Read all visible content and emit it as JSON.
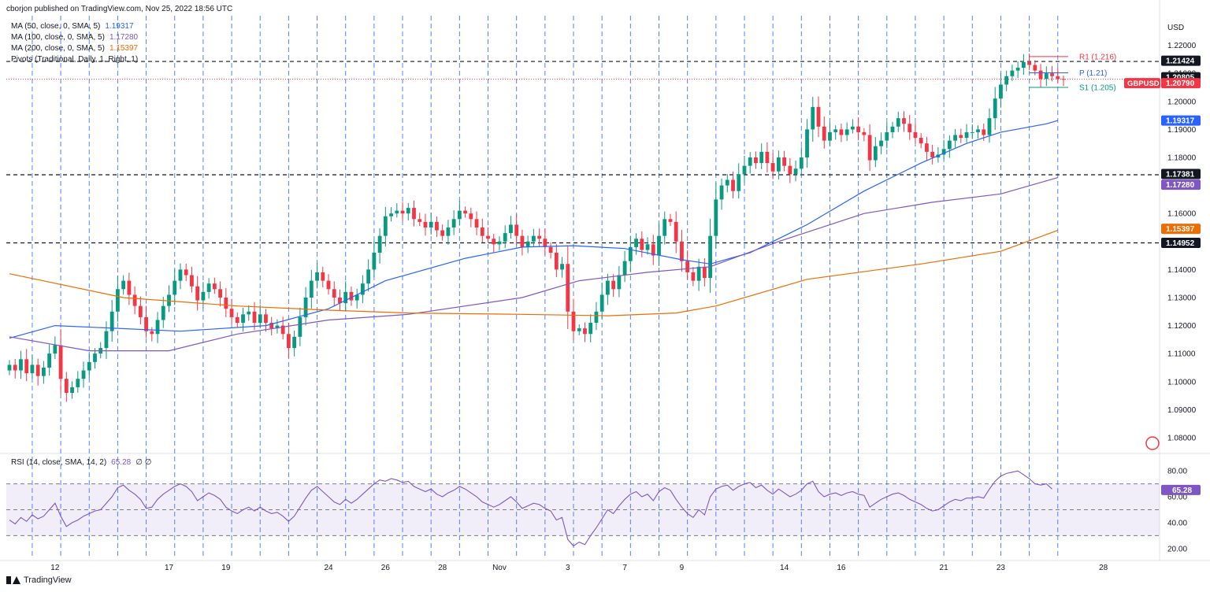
{
  "header": {
    "published": "cborjon published on TradingView.com, Nov 25, 2022 18:56 UTC"
  },
  "legend": {
    "items": [
      {
        "label": "MA (50, close, 0, SMA, 5)",
        "value": "1.19317",
        "color": "#2962ff"
      },
      {
        "label": "MA (100, close, 0, SMA, 5)",
        "value": "1.17280",
        "color": "#7e57c2"
      },
      {
        "label": "MA (200, close, 0, SMA, 5)",
        "value": "1.15397",
        "color": "#ef6c00"
      },
      {
        "label": "Pivots (Traditional, Daily, 1, Right, 1)",
        "value": "",
        "color": "#131722"
      }
    ]
  },
  "footer": {
    "brand": "TradingView"
  },
  "chart_data": {
    "type": "candlestick",
    "symbol": "GBPUSD",
    "currency": "USD",
    "ylim": [
      1.0755,
      1.2255
    ],
    "y_ticks": [
      "1.22000",
      "1.21000",
      "1.20000",
      "1.19000",
      "1.18000",
      "1.17000",
      "1.16000",
      "1.15000",
      "1.14000",
      "1.13000",
      "1.12000",
      "1.11000",
      "1.10000",
      "1.09000",
      "1.08000"
    ],
    "x_ticks": [
      {
        "label": "12",
        "index": 8
      },
      {
        "label": "17",
        "index": 28
      },
      {
        "label": "19",
        "index": 38
      },
      {
        "label": "24",
        "index": 56
      },
      {
        "label": "26",
        "index": 66
      },
      {
        "label": "28",
        "index": 76
      },
      {
        "label": "Nov",
        "index": 86
      },
      {
        "label": "3",
        "index": 98
      },
      {
        "label": "7",
        "index": 108
      },
      {
        "label": "9",
        "index": 118
      },
      {
        "label": "14",
        "index": 136
      },
      {
        "label": "16",
        "index": 146
      },
      {
        "label": "21",
        "index": 164
      },
      {
        "label": "23",
        "index": 174
      },
      {
        "label": "28",
        "index": 192
      }
    ],
    "closes": [
      1.106,
      1.104,
      1.108,
      1.103,
      1.106,
      1.102,
      1.105,
      1.11,
      1.113,
      1.101,
      1.096,
      1.098,
      1.101,
      1.104,
      1.107,
      1.11,
      1.112,
      1.118,
      1.125,
      1.133,
      1.136,
      1.131,
      1.127,
      1.123,
      1.118,
      1.117,
      1.122,
      1.127,
      1.131,
      1.136,
      1.14,
      1.138,
      1.134,
      1.129,
      1.132,
      1.135,
      1.133,
      1.13,
      1.126,
      1.123,
      1.121,
      1.124,
      1.125,
      1.121,
      1.124,
      1.121,
      1.119,
      1.12,
      1.117,
      1.112,
      1.116,
      1.123,
      1.13,
      1.136,
      1.139,
      1.136,
      1.133,
      1.13,
      1.128,
      1.132,
      1.129,
      1.131,
      1.135,
      1.14,
      1.146,
      1.152,
      1.159,
      1.16,
      1.161,
      1.16,
      1.162,
      1.158,
      1.157,
      1.155,
      1.157,
      1.154,
      1.152,
      1.155,
      1.158,
      1.161,
      1.16,
      1.158,
      1.155,
      1.152,
      1.151,
      1.149,
      1.15,
      1.153,
      1.156,
      1.152,
      1.148,
      1.15,
      1.152,
      1.151,
      1.148,
      1.146,
      1.14,
      1.142,
      1.125,
      1.118,
      1.119,
      1.117,
      1.121,
      1.125,
      1.131,
      1.136,
      1.133,
      1.138,
      1.143,
      1.148,
      1.151,
      1.147,
      1.149,
      1.145,
      1.152,
      1.158,
      1.157,
      1.15,
      1.143,
      1.139,
      1.136,
      1.141,
      1.137,
      1.152,
      1.165,
      1.17,
      1.172,
      1.168,
      1.174,
      1.177,
      1.18,
      1.178,
      1.182,
      1.178,
      1.175,
      1.18,
      1.177,
      1.174,
      1.176,
      1.18,
      1.19,
      1.198,
      1.191,
      1.186,
      1.189,
      1.19,
      1.188,
      1.19,
      1.191,
      1.189,
      1.188,
      1.179,
      1.184,
      1.186,
      1.189,
      1.191,
      1.194,
      1.192,
      1.189,
      1.187,
      1.185,
      1.182,
      1.18,
      1.181,
      1.183,
      1.186,
      1.188,
      1.187,
      1.189,
      1.189,
      1.19,
      1.188,
      1.194,
      1.201,
      1.206,
      1.209,
      1.211,
      1.212,
      1.214,
      1.213,
      1.211,
      1.208,
      1.21,
      1.209,
      1.208,
      1.2079
    ],
    "moving_averages": [
      {
        "name": "MA (50, close, 0, SMA, 5)",
        "color": "#2962ff",
        "last": 1.19317,
        "points": [
          [
            0,
            1.1155
          ],
          [
            8,
            1.12
          ],
          [
            30,
            1.118
          ],
          [
            45,
            1.12
          ],
          [
            56,
            1.126
          ],
          [
            66,
            1.136
          ],
          [
            80,
            1.144
          ],
          [
            90,
            1.148
          ],
          [
            99,
            1.1485
          ],
          [
            108,
            1.1475
          ],
          [
            118,
            1.1435
          ],
          [
            123,
            1.142
          ],
          [
            130,
            1.146
          ],
          [
            140,
            1.156
          ],
          [
            150,
            1.168
          ],
          [
            160,
            1.178
          ],
          [
            168,
            1.185
          ],
          [
            174,
            1.189
          ],
          [
            182,
            1.192
          ],
          [
            184,
            1.19317
          ]
        ]
      },
      {
        "name": "MA (100, close, 0, SMA, 5)",
        "color": "#7e57c2",
        "last": 1.1728,
        "points": [
          [
            0,
            1.116
          ],
          [
            14,
            1.111
          ],
          [
            28,
            1.111
          ],
          [
            40,
            1.117
          ],
          [
            56,
            1.122
          ],
          [
            70,
            1.124
          ],
          [
            90,
            1.13
          ],
          [
            100,
            1.136
          ],
          [
            112,
            1.139
          ],
          [
            123,
            1.141
          ],
          [
            135,
            1.15
          ],
          [
            150,
            1.16
          ],
          [
            162,
            1.164
          ],
          [
            174,
            1.167
          ],
          [
            184,
            1.1728
          ]
        ]
      },
      {
        "name": "MA (200, close, 0, SMA, 5)",
        "color": "#ef6c00",
        "last": 1.15397,
        "points": [
          [
            0,
            1.1385
          ],
          [
            20,
            1.13
          ],
          [
            40,
            1.127
          ],
          [
            56,
            1.1255
          ],
          [
            70,
            1.1245
          ],
          [
            90,
            1.124
          ],
          [
            105,
            1.1235
          ],
          [
            117,
            1.1245
          ],
          [
            124,
            1.127
          ],
          [
            140,
            1.1365
          ],
          [
            160,
            1.142
          ],
          [
            174,
            1.1465
          ],
          [
            184,
            1.15397
          ]
        ]
      }
    ],
    "horizontal_lines": [
      {
        "value": 1.21424,
        "label": "1.21424",
        "style": "dashed"
      },
      {
        "value": 1.17381,
        "label": "1.17381",
        "style": "dashed"
      },
      {
        "value": 1.14952,
        "label": "1.14952",
        "style": "dashed"
      },
      {
        "value": 1.2079,
        "label": "1.20790",
        "style": "dotted-red"
      }
    ],
    "pivots": [
      {
        "label": "R1 (1.216)",
        "value": 1.216,
        "color": "#f23645"
      },
      {
        "label": "P (1.21)",
        "value": 1.2102,
        "color": "#2962ff"
      },
      {
        "label": "S1 (1.205)",
        "value": 1.205,
        "color": "#089981"
      }
    ],
    "price_labels": [
      {
        "text": "1.21424",
        "value": 1.21424,
        "bg": "#131722"
      },
      {
        "text": "1.20805",
        "value": 1.20805,
        "bg": "#131722"
      },
      {
        "text": "1.20790",
        "value": 1.2079,
        "bg": "#f23645",
        "tag": "GBPUSD"
      },
      {
        "text": "1.19317",
        "value": 1.19317,
        "bg": "#2962ff"
      },
      {
        "text": "1.17381",
        "value": 1.17381,
        "bg": "#131722"
      },
      {
        "text": "1.17280",
        "value": 1.1728,
        "bg": "#7e57c2"
      },
      {
        "text": "1.15397",
        "value": 1.15397,
        "bg": "#ef6c00"
      },
      {
        "text": "1.14952",
        "value": 1.14952,
        "bg": "#131722"
      }
    ],
    "rsi": {
      "label": "RSI (14, close, SMA, 14, 2)",
      "value": "65.28",
      "extra": "∅  ∅",
      "ylim": [
        15,
        88
      ],
      "y_ticks": [
        "80.00",
        "60.00",
        "40.00",
        "20.00"
      ],
      "upper": 70,
      "middle": 50,
      "lower": 30,
      "color": "#7e57c2",
      "values": [
        42,
        39,
        44,
        41,
        46,
        43,
        45,
        50,
        55,
        45,
        37,
        40,
        42,
        45,
        47,
        49,
        50,
        55,
        60,
        67,
        69,
        65,
        62,
        58,
        51,
        52,
        58,
        62,
        65,
        68,
        70,
        68,
        64,
        57,
        60,
        63,
        61,
        58,
        52,
        49,
        47,
        50,
        52,
        49,
        52,
        49,
        47,
        48,
        45,
        41,
        45,
        52,
        59,
        65,
        68,
        64,
        60,
        56,
        54,
        58,
        55,
        58,
        62,
        66,
        70,
        73,
        72,
        74,
        73,
        71,
        72,
        68,
        66,
        64,
        66,
        62,
        60,
        63,
        65,
        68,
        66,
        63,
        60,
        56,
        54,
        52,
        54,
        57,
        60,
        56,
        51,
        53,
        55,
        54,
        51,
        49,
        42,
        44,
        27,
        22,
        25,
        23,
        30,
        36,
        43,
        50,
        47,
        53,
        58,
        62,
        64,
        60,
        62,
        57,
        64,
        67,
        65,
        58,
        52,
        47,
        44,
        50,
        46,
        60,
        66,
        68,
        69,
        65,
        68,
        70,
        71,
        67,
        69,
        65,
        62,
        66,
        63,
        60,
        62,
        65,
        70,
        72,
        64,
        60,
        62,
        63,
        61,
        63,
        64,
        62,
        61,
        52,
        55,
        58,
        60,
        62,
        63,
        61,
        58,
        56,
        54,
        51,
        49,
        50,
        53,
        56,
        58,
        57,
        59,
        59,
        60,
        59,
        66,
        72,
        76,
        78,
        79,
        80,
        77,
        74,
        70,
        69,
        70,
        66
      ]
    }
  }
}
